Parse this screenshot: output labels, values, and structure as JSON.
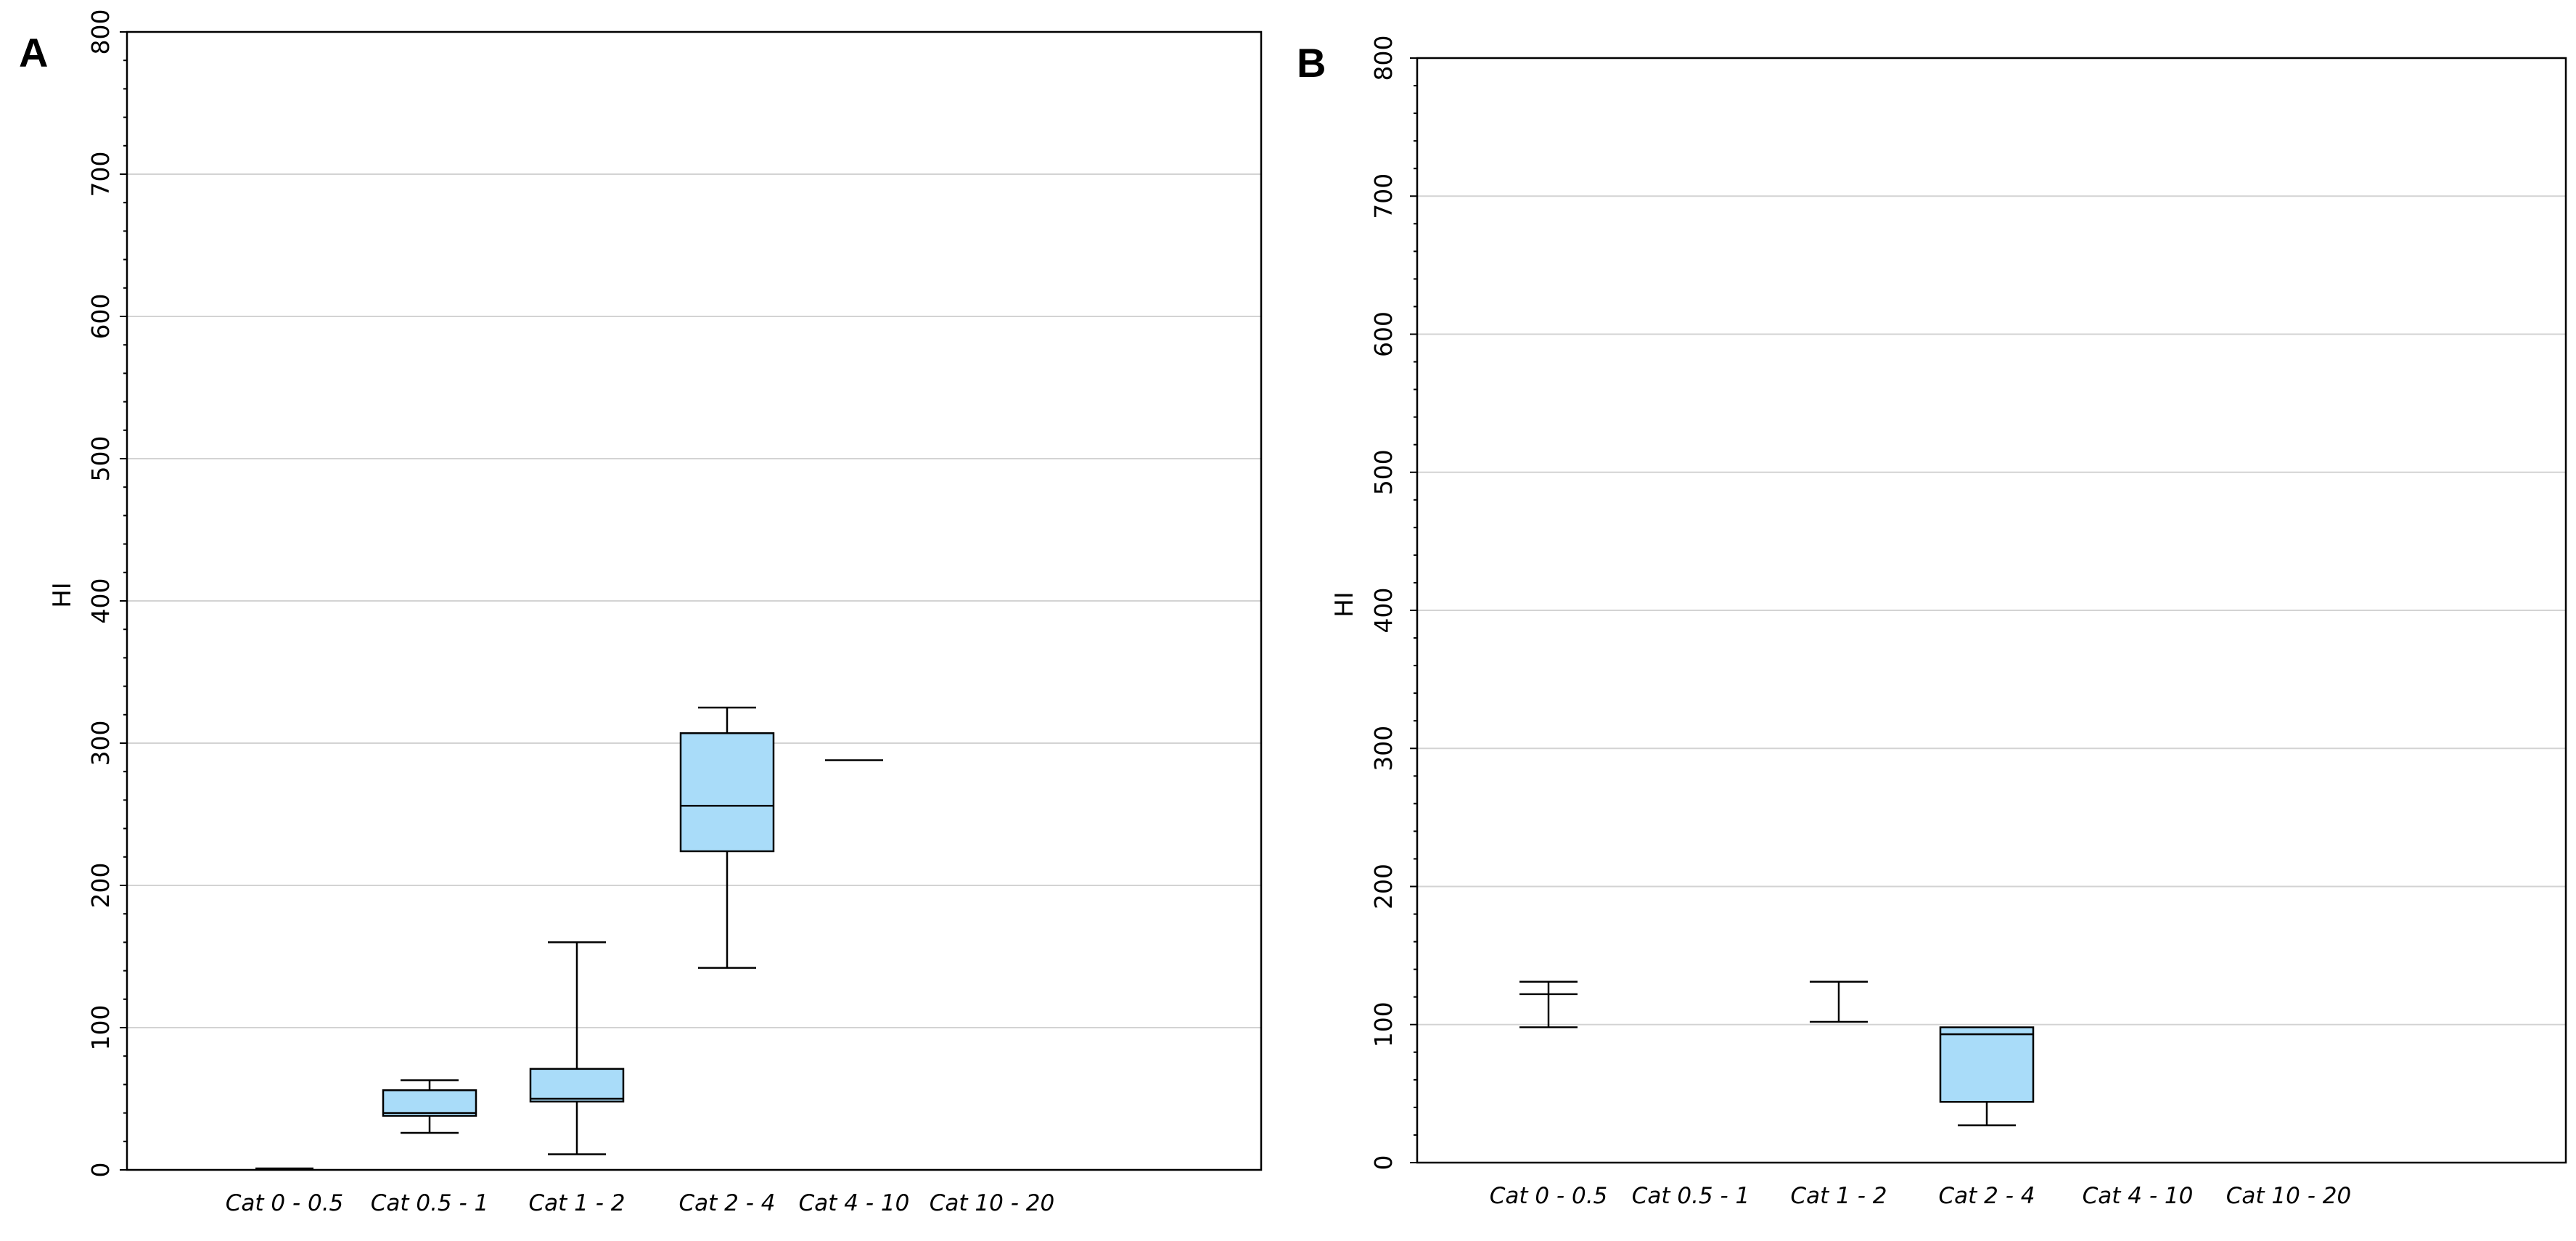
{
  "chart_data": [
    {
      "type": "box",
      "panel_label": "A",
      "ylabel": "HI",
      "ylim": [
        0,
        800
      ],
      "yticks": [
        0,
        100,
        200,
        300,
        400,
        500,
        600,
        700,
        800
      ],
      "grid": true,
      "categories": [
        "Cat 0 - 0.5",
        "Cat 0.5 - 1",
        "Cat 1 - 2",
        "Cat 2 - 4",
        "Cat 4 - 10",
        "Cat 10 - 20"
      ],
      "boxes": [
        {
          "category": "Cat 0 - 0.5",
          "min": 1,
          "q1": 1,
          "median": 1,
          "q3": 1,
          "max": 1
        },
        {
          "category": "Cat 0.5 - 1",
          "min": 26,
          "q1": 38,
          "median": 40,
          "q3": 56,
          "max": 63
        },
        {
          "category": "Cat 1 - 2",
          "min": 11,
          "q1": 48,
          "median": 50,
          "q3": 71,
          "max": 160
        },
        {
          "category": "Cat 2 - 4",
          "min": 142,
          "q1": 224,
          "median": 256,
          "q3": 307,
          "max": 325
        },
        {
          "category": "Cat 4 - 10",
          "min": 288,
          "q1": 288,
          "median": 288,
          "q3": 288,
          "max": 288
        },
        {
          "category": "Cat 10 - 20",
          "min": null,
          "q1": null,
          "median": null,
          "q3": null,
          "max": null
        }
      ]
    },
    {
      "type": "box",
      "panel_label": "B",
      "ylabel": "HI",
      "ylim": [
        0,
        800
      ],
      "yticks": [
        0,
        100,
        200,
        300,
        400,
        500,
        600,
        700,
        800
      ],
      "grid": true,
      "categories": [
        "Cat 0 - 0.5",
        "Cat 0.5 - 1",
        "Cat 1 - 2",
        "Cat 2 - 4",
        "Cat 4 - 10",
        "Cat 10 - 20"
      ],
      "boxes": [
        {
          "category": "Cat 0 - 0.5",
          "min": 98,
          "q1": 122,
          "median": 122,
          "q3": 122,
          "max": 131
        },
        {
          "category": "Cat 0.5 - 1",
          "min": null,
          "q1": null,
          "median": null,
          "q3": null,
          "max": null
        },
        {
          "category": "Cat 1 - 2",
          "min": 102,
          "q1": 131,
          "median": 131,
          "q3": 131,
          "max": 131
        },
        {
          "category": "Cat 2 - 4",
          "min": 27,
          "q1": 44,
          "median": 93,
          "q3": 98,
          "max": 98
        },
        {
          "category": "Cat 4 - 10",
          "min": null,
          "q1": null,
          "median": null,
          "q3": null,
          "max": null
        },
        {
          "category": "Cat 10 - 20",
          "min": null,
          "q1": null,
          "median": null,
          "q3": null,
          "max": null
        }
      ]
    }
  ],
  "colors": {
    "box_fill": "#a9dcf9",
    "box_stroke": "#000000",
    "grid": "#d3d3d3",
    "frame": "#000000"
  }
}
